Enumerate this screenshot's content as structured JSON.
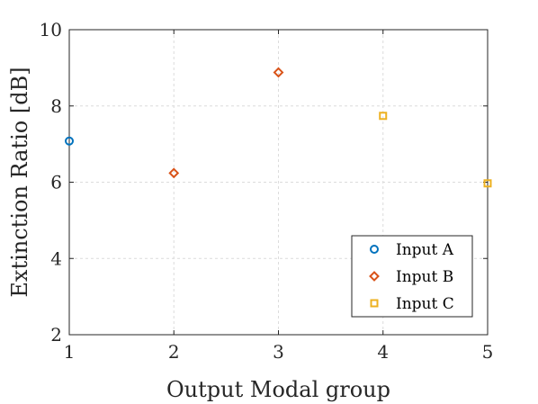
{
  "chart_data": {
    "type": "scatter",
    "title": "",
    "xlabel": "Output Modal group",
    "ylabel": "Extinction Ratio [dB]",
    "xlim": [
      1,
      5
    ],
    "ylim": [
      2,
      10
    ],
    "xticks": [
      "1",
      "2",
      "3",
      "4",
      "5"
    ],
    "yticks": [
      "2",
      "4",
      "6",
      "8",
      "10"
    ],
    "grid": true,
    "legend_position": "bottom-right",
    "series": [
      {
        "name": "Input A",
        "marker": "circle",
        "color": "#0072BD",
        "x": [
          1
        ],
        "y": [
          7.08
        ]
      },
      {
        "name": "Input B",
        "marker": "diamond",
        "color": "#D95319",
        "x": [
          2,
          3
        ],
        "y": [
          6.24,
          8.88
        ]
      },
      {
        "name": "Input C",
        "marker": "square",
        "color": "#EDB120",
        "x": [
          4,
          5
        ],
        "y": [
          7.74,
          5.97
        ]
      }
    ]
  }
}
